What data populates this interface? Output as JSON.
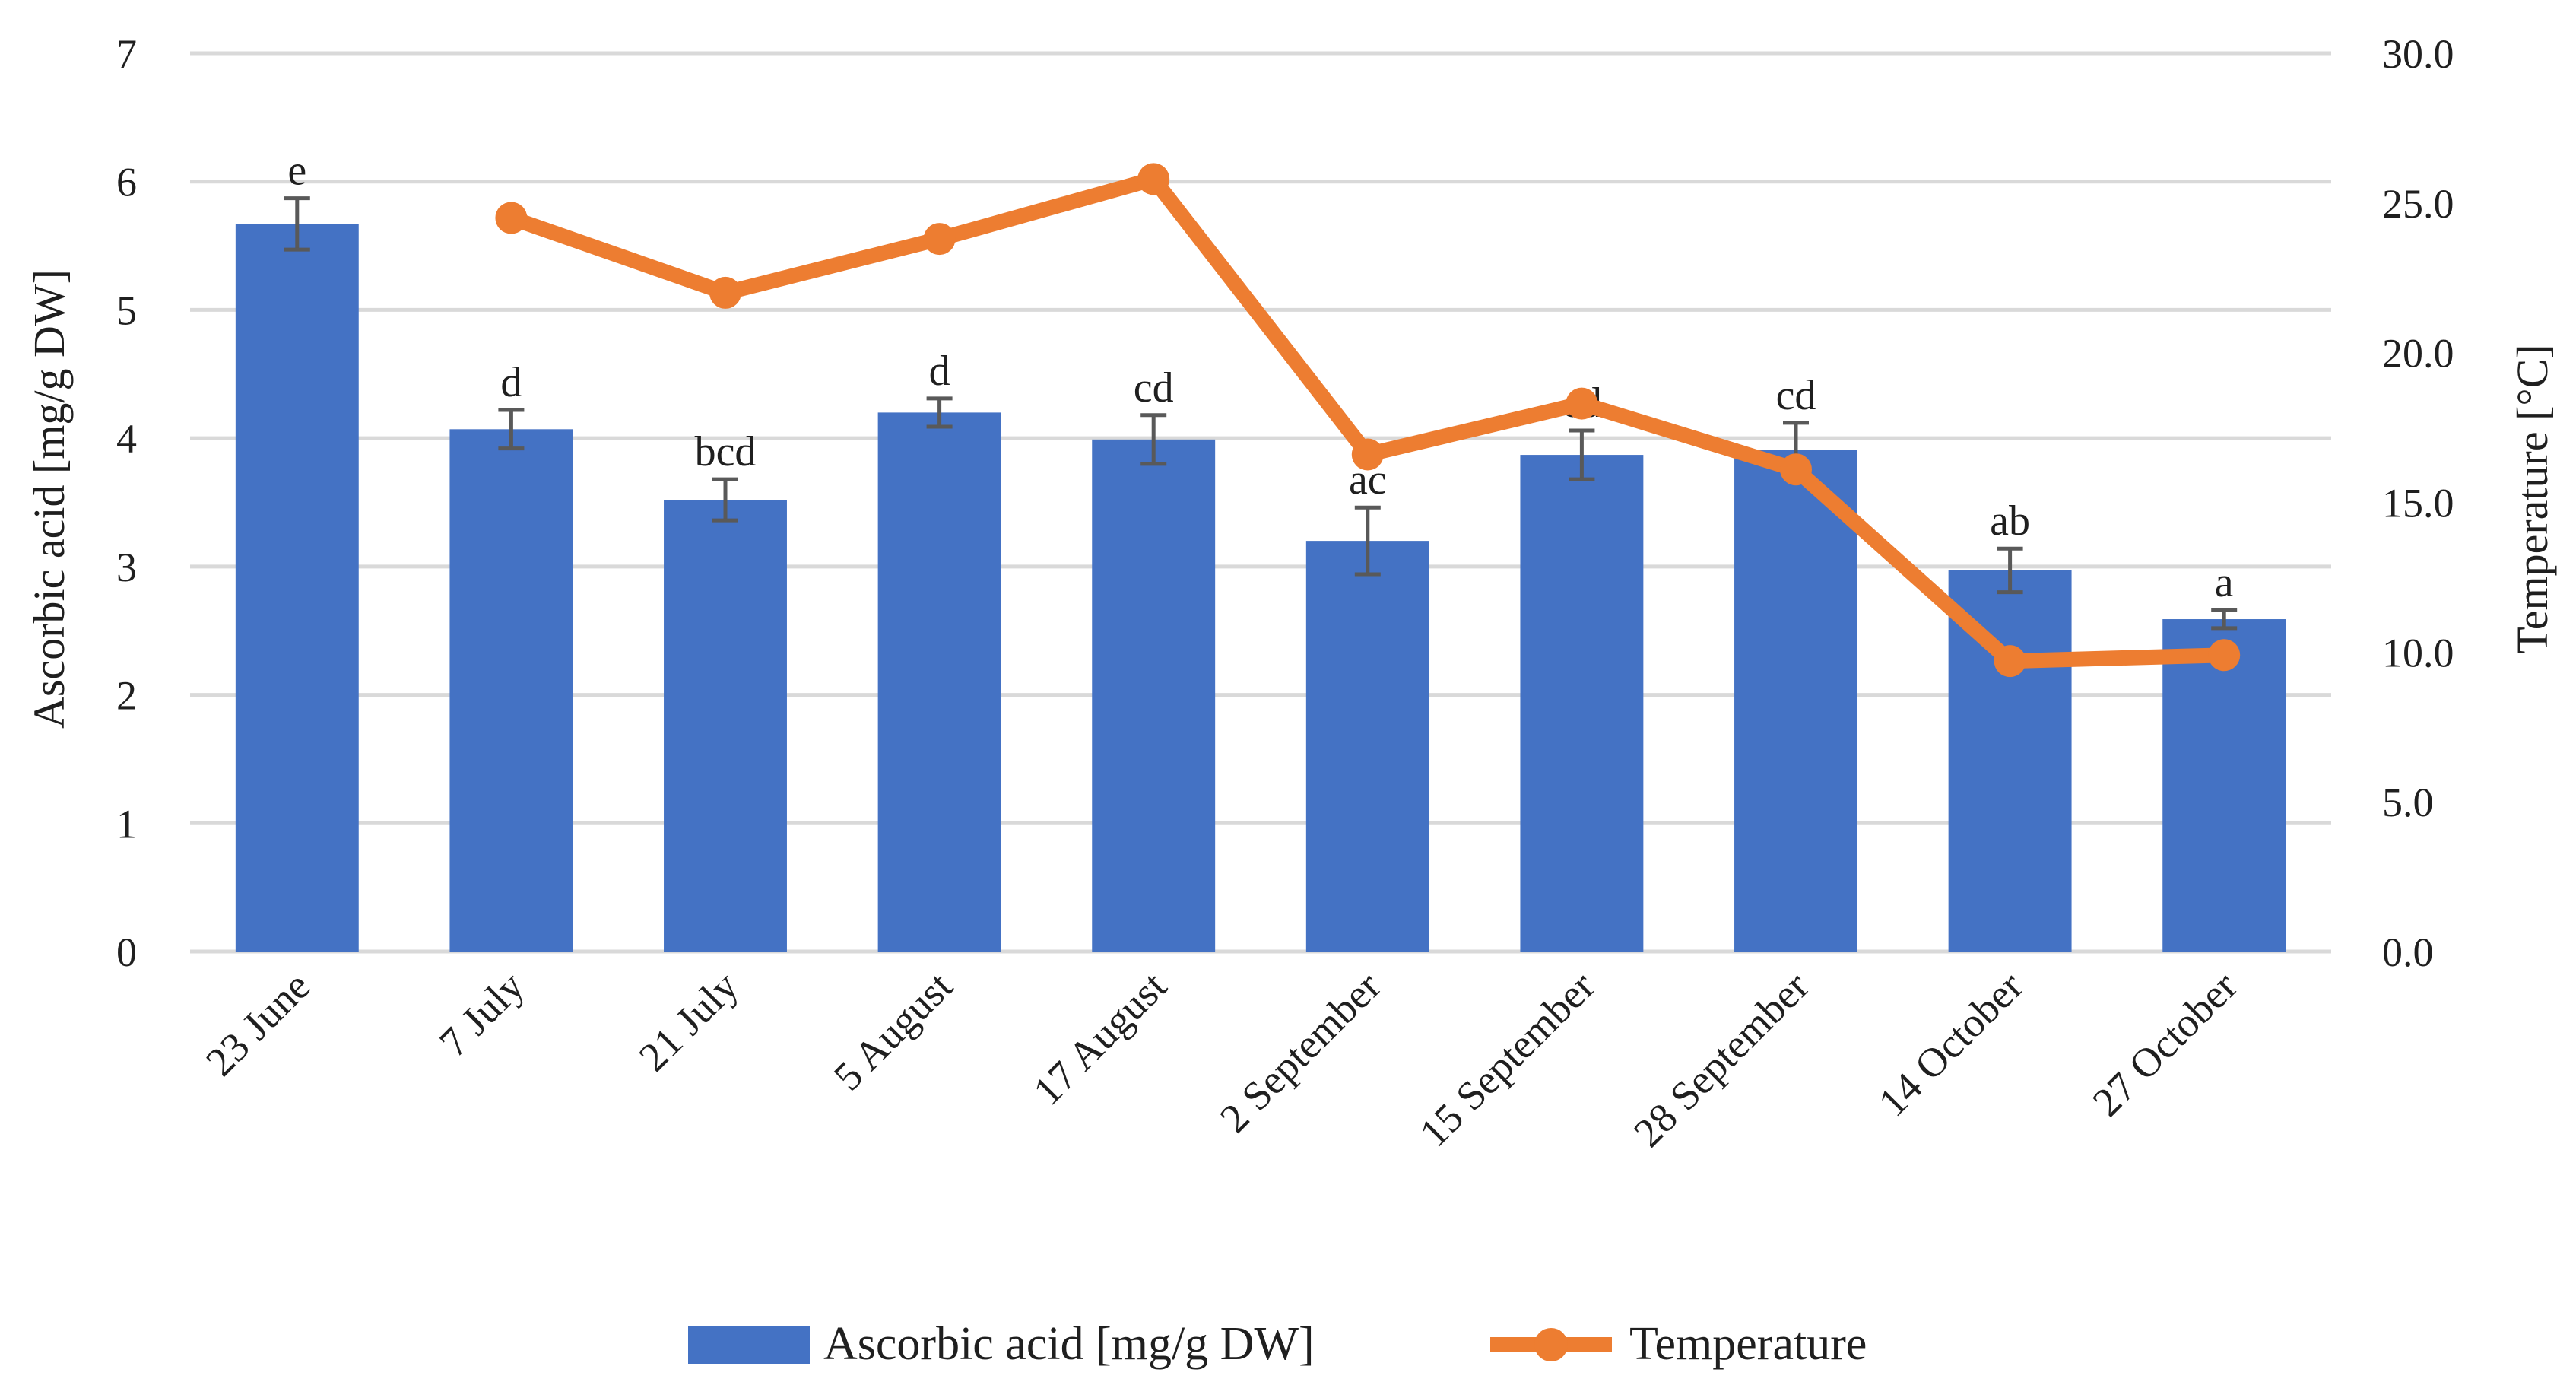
{
  "chart_data": {
    "type": "bar",
    "categories": [
      "23 June",
      "7 July",
      "21 July",
      "5 August",
      "17 August",
      "2 September",
      "15 September",
      "28 September",
      "14 October",
      "27 October"
    ],
    "series": [
      {
        "name": "Ascorbic acid [mg/g DW]",
        "type": "bar",
        "axis": "left",
        "color": "#4472C4",
        "values": [
          5.67,
          4.07,
          3.52,
          4.2,
          3.99,
          3.2,
          3.87,
          3.91,
          2.97,
          2.59
        ],
        "errors": [
          0.2,
          0.15,
          0.16,
          0.11,
          0.19,
          0.26,
          0.19,
          0.21,
          0.17,
          0.07
        ],
        "letters": [
          "e",
          "d",
          "bcd",
          "d",
          "cd",
          "ac",
          "cd",
          "cd",
          "ab",
          "a"
        ]
      },
      {
        "name": "Temperature",
        "type": "line",
        "axis": "right",
        "color": "#ED7D31",
        "values": [
          null,
          24.5,
          22.0,
          23.8,
          25.8,
          16.6,
          18.3,
          16.1,
          9.7,
          9.9
        ]
      }
    ],
    "ylabel": "Ascorbic acid [mg/g DW]",
    "ylim": [
      0,
      7
    ],
    "yticks": [
      "0",
      "1",
      "2",
      "3",
      "4",
      "5",
      "6",
      "7"
    ],
    "y2label": "Temperature [°C]",
    "y2lim": [
      0,
      30
    ],
    "y2ticks": [
      "0.0",
      "5.0",
      "10.0",
      "15.0",
      "20.0",
      "25.0",
      "30.0"
    ],
    "grid": true,
    "legend_position": "bottom"
  }
}
